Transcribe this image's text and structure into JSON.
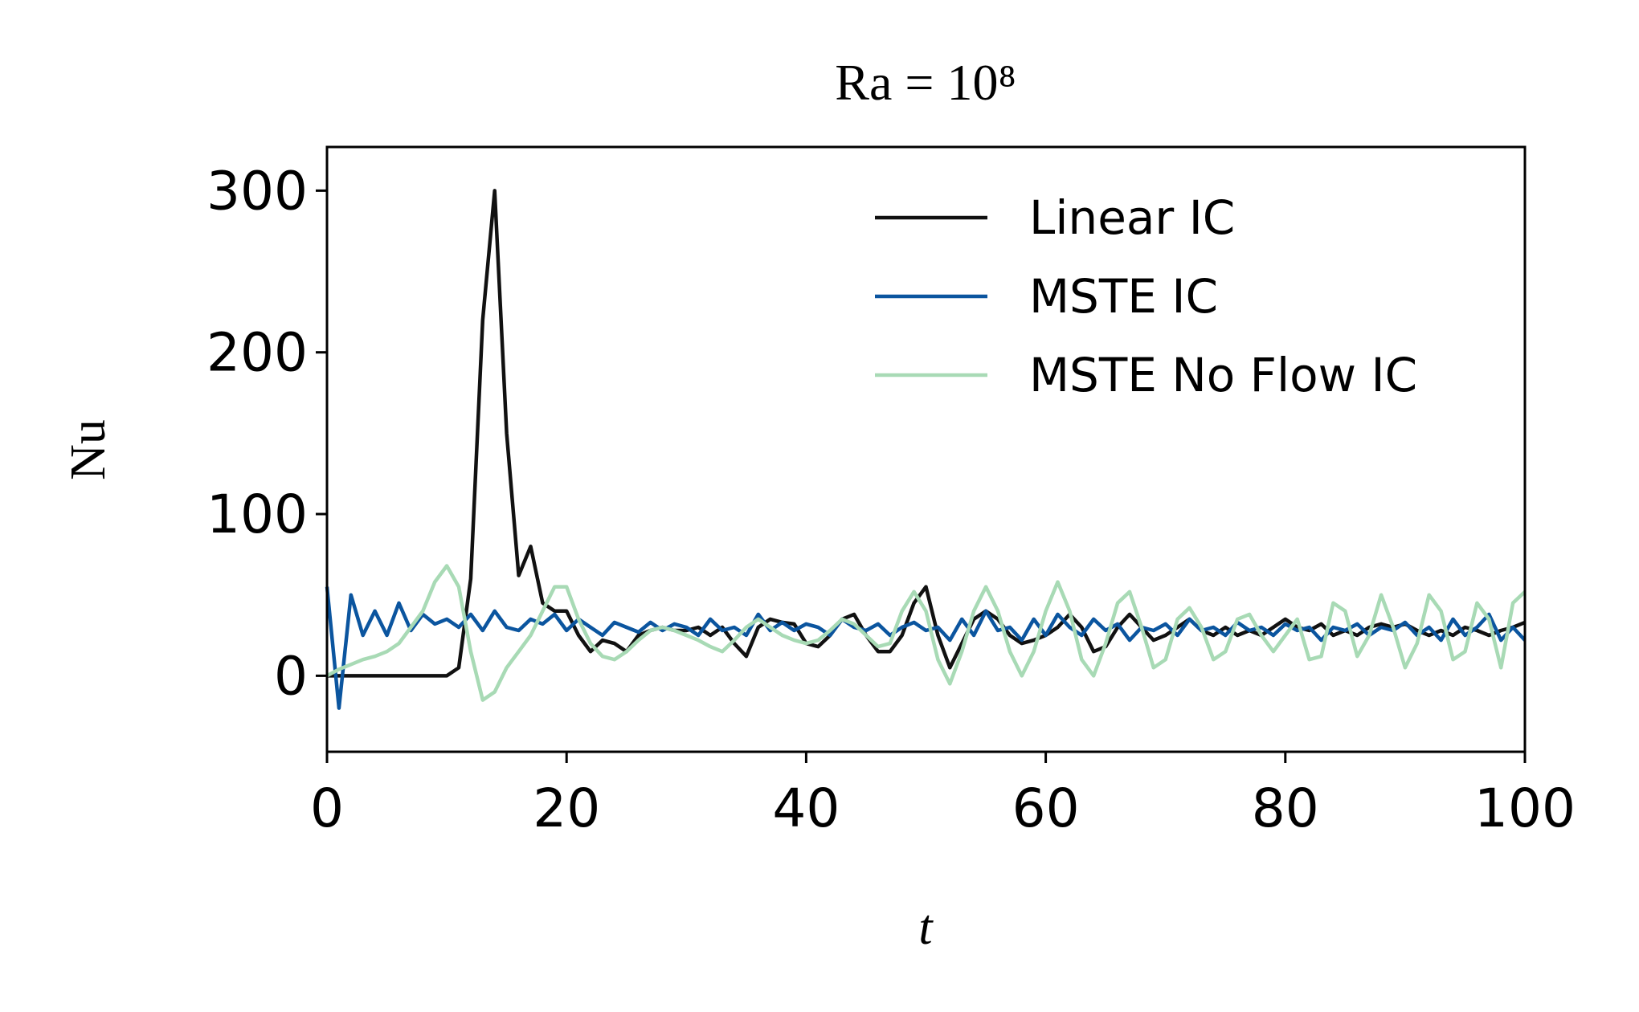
{
  "chart_data": {
    "type": "line",
    "title": "Ra = 10⁸",
    "xlabel": "t",
    "ylabel": "Nu",
    "x": [
      0,
      1,
      2,
      3,
      4,
      5,
      6,
      7,
      8,
      9,
      10,
      11,
      12,
      13,
      14,
      15,
      16,
      17,
      18,
      19,
      20,
      21,
      22,
      23,
      24,
      25,
      26,
      27,
      28,
      29,
      30,
      31,
      32,
      33,
      34,
      35,
      36,
      37,
      38,
      39,
      40,
      41,
      42,
      43,
      44,
      45,
      46,
      47,
      48,
      49,
      50,
      51,
      52,
      53,
      54,
      55,
      56,
      57,
      58,
      59,
      60,
      61,
      62,
      63,
      64,
      65,
      66,
      67,
      68,
      69,
      70,
      71,
      72,
      73,
      74,
      75,
      76,
      77,
      78,
      79,
      80,
      81,
      82,
      83,
      84,
      85,
      86,
      87,
      88,
      89,
      90,
      91,
      92,
      93,
      94,
      95,
      96,
      97,
      98,
      99,
      100
    ],
    "series": [
      {
        "name": "Linear IC",
        "color": "#111111",
        "values": [
          0,
          0,
          0,
          0,
          0,
          0,
          0,
          0,
          0,
          0,
          0,
          5,
          60,
          220,
          300,
          150,
          62,
          80,
          45,
          40,
          40,
          25,
          15,
          22,
          20,
          15,
          25,
          28,
          30,
          28,
          28,
          30,
          25,
          30,
          20,
          12,
          30,
          35,
          33,
          32,
          20,
          18,
          25,
          35,
          38,
          25,
          15,
          15,
          25,
          45,
          55,
          25,
          5,
          20,
          35,
          40,
          35,
          25,
          20,
          22,
          25,
          30,
          38,
          30,
          15,
          18,
          30,
          38,
          30,
          22,
          25,
          30,
          35,
          28,
          25,
          30,
          25,
          28,
          25,
          30,
          35,
          30,
          28,
          32,
          25,
          28,
          25,
          30,
          32,
          30,
          32,
          28,
          25,
          28,
          25,
          30,
          28,
          25,
          28,
          30,
          33
        ]
      },
      {
        "name": "MSTE IC",
        "color": "#0b559f",
        "values": [
          55,
          -20,
          50,
          25,
          40,
          25,
          45,
          28,
          38,
          32,
          35,
          30,
          38,
          28,
          40,
          30,
          28,
          35,
          32,
          38,
          28,
          35,
          30,
          25,
          33,
          30,
          27,
          33,
          28,
          32,
          30,
          25,
          35,
          28,
          30,
          25,
          38,
          28,
          33,
          28,
          32,
          30,
          25,
          35,
          30,
          28,
          32,
          25,
          30,
          33,
          28,
          30,
          22,
          35,
          25,
          40,
          28,
          30,
          22,
          35,
          25,
          38,
          30,
          25,
          35,
          28,
          32,
          22,
          30,
          28,
          32,
          25,
          35,
          28,
          30,
          25,
          33,
          28,
          30,
          25,
          32,
          28,
          30,
          22,
          30,
          28,
          32,
          25,
          30,
          28,
          33,
          25,
          30,
          22,
          35,
          25,
          30,
          38,
          22,
          30,
          22
        ]
      },
      {
        "name": "MSTE No Flow IC",
        "color": "#a8dab5",
        "values": [
          0,
          4,
          7,
          10,
          12,
          15,
          20,
          30,
          40,
          58,
          68,
          55,
          15,
          -15,
          -10,
          5,
          15,
          25,
          40,
          55,
          55,
          35,
          20,
          12,
          10,
          15,
          22,
          28,
          30,
          28,
          25,
          22,
          18,
          15,
          22,
          30,
          35,
          30,
          25,
          22,
          20,
          22,
          28,
          35,
          32,
          25,
          18,
          20,
          40,
          52,
          40,
          10,
          -5,
          15,
          40,
          55,
          40,
          15,
          0,
          15,
          40,
          58,
          40,
          10,
          0,
          20,
          45,
          52,
          30,
          5,
          10,
          35,
          42,
          30,
          10,
          15,
          35,
          38,
          25,
          15,
          25,
          35,
          10,
          12,
          45,
          40,
          12,
          25,
          50,
          30,
          5,
          20,
          50,
          40,
          10,
          15,
          45,
          35,
          5,
          45,
          52
        ]
      }
    ],
    "xlim": [
      0,
      100
    ],
    "xticks": [
      0,
      20,
      40,
      60,
      80,
      100
    ],
    "ylim": [
      -47,
      327
    ],
    "yticks": [
      0,
      100,
      200,
      300
    ],
    "legend": "upper right"
  }
}
